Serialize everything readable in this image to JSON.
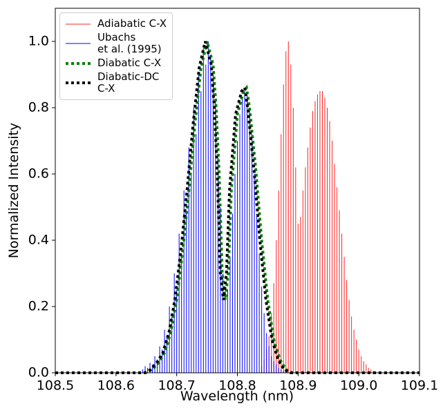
{
  "chart_data": {
    "type": "spectrum",
    "xlabel": "Wavelength (nm)",
    "ylabel": "Normalized Intensity",
    "xlim": [
      108.5,
      109.1
    ],
    "ylim": [
      0,
      1.1
    ],
    "xticks": [
      108.5,
      108.6,
      108.7,
      108.8,
      108.9,
      {
        "value": 109.0,
        "label": "109.0"
      },
      109.1
    ],
    "yticks": [
      {
        "value": 0,
        "label": "0.0"
      },
      0.2,
      0.4,
      0.6,
      0.8,
      {
        "value": 1,
        "label": "1.0"
      }
    ],
    "legend": "upper left",
    "series": [
      {
        "name": "Adiabatic C-X",
        "color": "#ff2020",
        "style": "sticks",
        "x": [
          108.84,
          108.844,
          108.848,
          108.852,
          108.856,
          108.86,
          108.864,
          108.868,
          108.872,
          108.876,
          108.88,
          108.884,
          108.888,
          108.892,
          108.896,
          108.9,
          108.904,
          108.908,
          108.912,
          108.916,
          108.92,
          108.924,
          108.928,
          108.932,
          108.936,
          108.94,
          108.944,
          108.948,
          108.952,
          108.956,
          108.96,
          108.964,
          108.968,
          108.972,
          108.976,
          108.98,
          108.984,
          108.988,
          108.992,
          108.996,
          109.0,
          109.004,
          109.008,
          109.012,
          109.016,
          109.02,
          109.024,
          109.028
        ],
        "values": [
          0.02,
          0.04,
          0.07,
          0.11,
          0.18,
          0.27,
          0.4,
          0.55,
          0.72,
          0.87,
          0.97,
          1.0,
          0.93,
          0.8,
          0.62,
          0.45,
          0.47,
          0.55,
          0.62,
          0.68,
          0.74,
          0.79,
          0.82,
          0.84,
          0.85,
          0.85,
          0.83,
          0.8,
          0.76,
          0.7,
          0.63,
          0.56,
          0.49,
          0.42,
          0.35,
          0.28,
          0.22,
          0.17,
          0.13,
          0.1,
          0.07,
          0.05,
          0.035,
          0.025,
          0.015,
          0.01,
          0.006,
          0.004
        ]
      },
      {
        "name": "Ubachs\net al. (1995)",
        "color": "#0000ff",
        "style": "sticks",
        "x": [
          108.64,
          108.644,
          108.648,
          108.652,
          108.656,
          108.66,
          108.664,
          108.668,
          108.672,
          108.676,
          108.68,
          108.684,
          108.688,
          108.692,
          108.696,
          108.7,
          108.704,
          108.708,
          108.712,
          108.716,
          108.72,
          108.724,
          108.728,
          108.732,
          108.736,
          108.74,
          108.744,
          108.748,
          108.752,
          108.756,
          108.76,
          108.764,
          108.768,
          108.772,
          108.776,
          108.78,
          108.784,
          108.788,
          108.792,
          108.796,
          108.8,
          108.804,
          108.808,
          108.812,
          108.816,
          108.82,
          108.824,
          108.828,
          108.832,
          108.836,
          108.84,
          108.844,
          108.848,
          108.852,
          108.856,
          108.86,
          108.864,
          108.868,
          108.872,
          108.876,
          108.88
        ],
        "values": [
          0.005,
          0.01,
          0.02,
          0.015,
          0.03,
          0.025,
          0.05,
          0.04,
          0.08,
          0.07,
          0.13,
          0.11,
          0.2,
          0.17,
          0.3,
          0.25,
          0.42,
          0.36,
          0.55,
          0.48,
          0.68,
          0.6,
          0.8,
          0.72,
          0.9,
          0.85,
          0.98,
          0.93,
          1.0,
          0.95,
          0.9,
          0.82,
          0.65,
          0.5,
          0.3,
          0.22,
          0.25,
          0.35,
          0.48,
          0.6,
          0.7,
          0.78,
          0.83,
          0.85,
          0.84,
          0.8,
          0.72,
          0.6,
          0.48,
          0.36,
          0.26,
          0.18,
          0.12,
          0.08,
          0.05,
          0.035,
          0.025,
          0.015,
          0.01,
          0.006,
          0.004
        ]
      },
      {
        "name": "Diabatic C-X",
        "color": "#008000",
        "style": "dotted",
        "x": [
          108.5,
          108.65,
          108.66,
          108.67,
          108.68,
          108.69,
          108.7,
          108.71,
          108.72,
          108.73,
          108.74,
          108.75,
          108.76,
          108.765,
          108.77,
          108.775,
          108.78,
          108.785,
          108.79,
          108.8,
          108.81,
          108.815,
          108.82,
          108.83,
          108.84,
          108.85,
          108.86,
          108.87,
          108.88,
          108.89,
          109.1
        ],
        "values": [
          0,
          0,
          0.01,
          0.03,
          0.06,
          0.12,
          0.22,
          0.37,
          0.55,
          0.75,
          0.92,
          1.0,
          0.93,
          0.8,
          0.6,
          0.3,
          0.22,
          0.3,
          0.55,
          0.78,
          0.85,
          0.86,
          0.8,
          0.62,
          0.4,
          0.22,
          0.1,
          0.04,
          0.01,
          0,
          0
        ]
      },
      {
        "name": "Diabatic-DC\nC-X",
        "color": "#000000",
        "style": "dotted",
        "x": [
          108.5,
          108.647,
          108.657,
          108.667,
          108.677,
          108.687,
          108.697,
          108.707,
          108.717,
          108.727,
          108.737,
          108.747,
          108.757,
          108.762,
          108.767,
          108.772,
          108.777,
          108.782,
          108.787,
          108.797,
          108.807,
          108.812,
          108.817,
          108.827,
          108.837,
          108.847,
          108.857,
          108.867,
          108.877,
          108.887,
          109.1
        ],
        "values": [
          0,
          0,
          0.01,
          0.03,
          0.06,
          0.12,
          0.22,
          0.37,
          0.55,
          0.75,
          0.92,
          1.0,
          0.93,
          0.8,
          0.6,
          0.3,
          0.22,
          0.3,
          0.55,
          0.78,
          0.85,
          0.86,
          0.8,
          0.62,
          0.4,
          0.22,
          0.1,
          0.04,
          0.01,
          0,
          0
        ]
      }
    ]
  }
}
